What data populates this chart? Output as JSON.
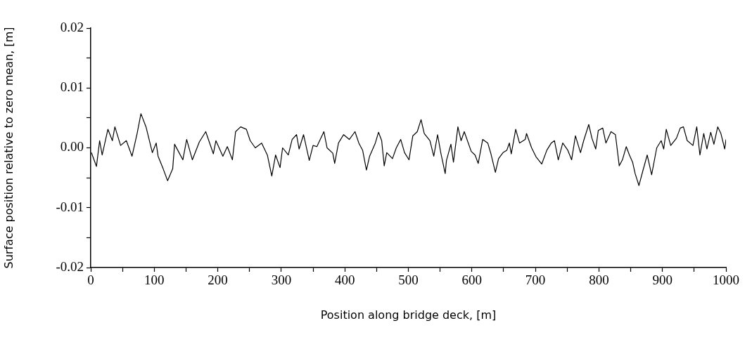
{
  "chart_data": {
    "type": "line",
    "xlabel": "Position along bridge deck, [m]",
    "ylabel": "Surface position relative to zero mean, [m]",
    "color": "#000000",
    "grid": false,
    "legend": false,
    "marker": "none",
    "line_style": "solid",
    "xlim": [
      0,
      1000
    ],
    "ylim": [
      -0.02,
      0.02
    ],
    "xticks": [
      0,
      {
        "value": 50,
        "label": null
      },
      100,
      {
        "value": 150,
        "label": null
      },
      200,
      {
        "value": 250,
        "label": null
      },
      300,
      {
        "value": 350,
        "label": null
      },
      400,
      {
        "value": 450,
        "label": null
      },
      500,
      {
        "value": 550,
        "label": null
      },
      600,
      {
        "value": 650,
        "label": null
      },
      700,
      {
        "value": 750,
        "label": null
      },
      800,
      {
        "value": 850,
        "label": null
      },
      900,
      {
        "value": 950,
        "label": null
      },
      1000
    ],
    "yticks": [
      -0.02,
      {
        "value": -0.015,
        "label": null
      },
      -0.01,
      {
        "value": -0.005,
        "label": null
      },
      {
        "value": 0,
        "label": "0.00"
      },
      {
        "value": 0.005,
        "label": null
      },
      0.01,
      {
        "value": 0.015,
        "label": null
      },
      0.02
    ],
    "x": [
      1,
      9,
      14,
      18,
      27,
      34,
      38,
      47,
      56,
      65,
      73,
      79,
      87,
      97,
      103,
      106,
      114,
      121,
      129,
      132,
      145,
      151,
      160,
      171,
      181,
      193,
      197,
      208,
      215,
      223,
      228,
      236,
      245,
      251,
      259,
      269,
      278,
      285,
      291,
      298,
      302,
      311,
      317,
      324,
      328,
      335,
      344,
      350,
      356,
      367,
      372,
      381,
      384,
      390,
      398,
      407,
      416,
      422,
      428,
      434,
      439,
      448,
      453,
      458,
      462,
      466,
      475,
      481,
      488,
      494,
      501,
      507,
      514,
      520,
      525,
      534,
      540,
      546,
      551,
      558,
      560,
      567,
      571,
      578,
      583,
      588,
      599,
      605,
      610,
      617,
      625,
      630,
      637,
      642,
      649,
      655,
      659,
      662,
      669,
      675,
      684,
      686,
      694,
      701,
      710,
      718,
      725,
      730,
      736,
      743,
      751,
      757,
      763,
      771,
      776,
      784,
      789,
      795,
      799,
      806,
      811,
      819,
      826,
      832,
      837,
      843,
      848,
      853,
      857,
      863,
      869,
      876,
      883,
      891,
      898,
      902,
      906,
      913,
      922,
      928,
      933,
      939,
      948,
      954,
      959,
      965,
      970,
      976,
      981,
      987,
      992,
      998,
      1000
    ],
    "values": [
      -0.0008,
      -0.0031,
      0.0012,
      -0.0012,
      0.0031,
      0.0012,
      0.0035,
      0.0004,
      0.0012,
      -0.0014,
      0.0024,
      0.0057,
      0.0035,
      -0.0008,
      0.0008,
      -0.0014,
      -0.0035,
      -0.0055,
      -0.0035,
      0.0006,
      -0.002,
      0.0014,
      -0.002,
      0.001,
      0.0027,
      -0.001,
      0.0012,
      -0.0014,
      0.0002,
      -0.002,
      0.0027,
      0.0035,
      0.0031,
      0.0012,
      0,
      0.0008,
      -0.0012,
      -0.0047,
      -0.0012,
      -0.0033,
      0,
      -0.0012,
      0.0014,
      0.0022,
      -0.0002,
      0.0022,
      -0.0021,
      0.0004,
      0.0002,
      0.0027,
      0,
      -0.0009,
      -0.0026,
      0.0008,
      0.0022,
      0.0014,
      0.0027,
      0.0008,
      -0.0004,
      -0.0037,
      -0.0014,
      0.0008,
      0.0026,
      0.0012,
      -0.003,
      -0.0008,
      -0.0018,
      0,
      0.0014,
      -0.0008,
      -0.002,
      0.002,
      0.0027,
      0.0047,
      0.0024,
      0.0012,
      -0.0014,
      0.0022,
      -0.0008,
      -0.0043,
      -0.0021,
      0.0006,
      -0.0024,
      0.0035,
      0.0012,
      0.0027,
      -0.0006,
      -0.0012,
      -0.0026,
      0.0014,
      0.0008,
      -0.001,
      -0.0041,
      -0.0018,
      -0.0008,
      -0.0004,
      0.0008,
      -0.001,
      0.0031,
      0.0008,
      0.0014,
      0.0024,
      0,
      -0.0015,
      -0.0027,
      -0.0004,
      0.0008,
      0.0012,
      -0.002,
      0.0008,
      -0.0004,
      -0.002,
      0.002,
      -0.0008,
      0.0012,
      0.0039,
      0.0016,
      -0.0002,
      0.0029,
      0.0033,
      0.0008,
      0.0027,
      0.0022,
      -0.003,
      -0.002,
      0.0002,
      -0.0012,
      -0.0024,
      -0.0043,
      -0.0063,
      -0.0039,
      -0.0012,
      -0.0045,
      0,
      0.0012,
      -0.0002,
      0.0031,
      0.0004,
      0.0016,
      0.0033,
      0.0035,
      0.0012,
      0.0004,
      0.0035,
      -0.0012,
      0.0024,
      -0.0002,
      0.0026,
      0.0006,
      0.0035,
      0.0024,
      -0.0002,
      0.0014
    ]
  }
}
